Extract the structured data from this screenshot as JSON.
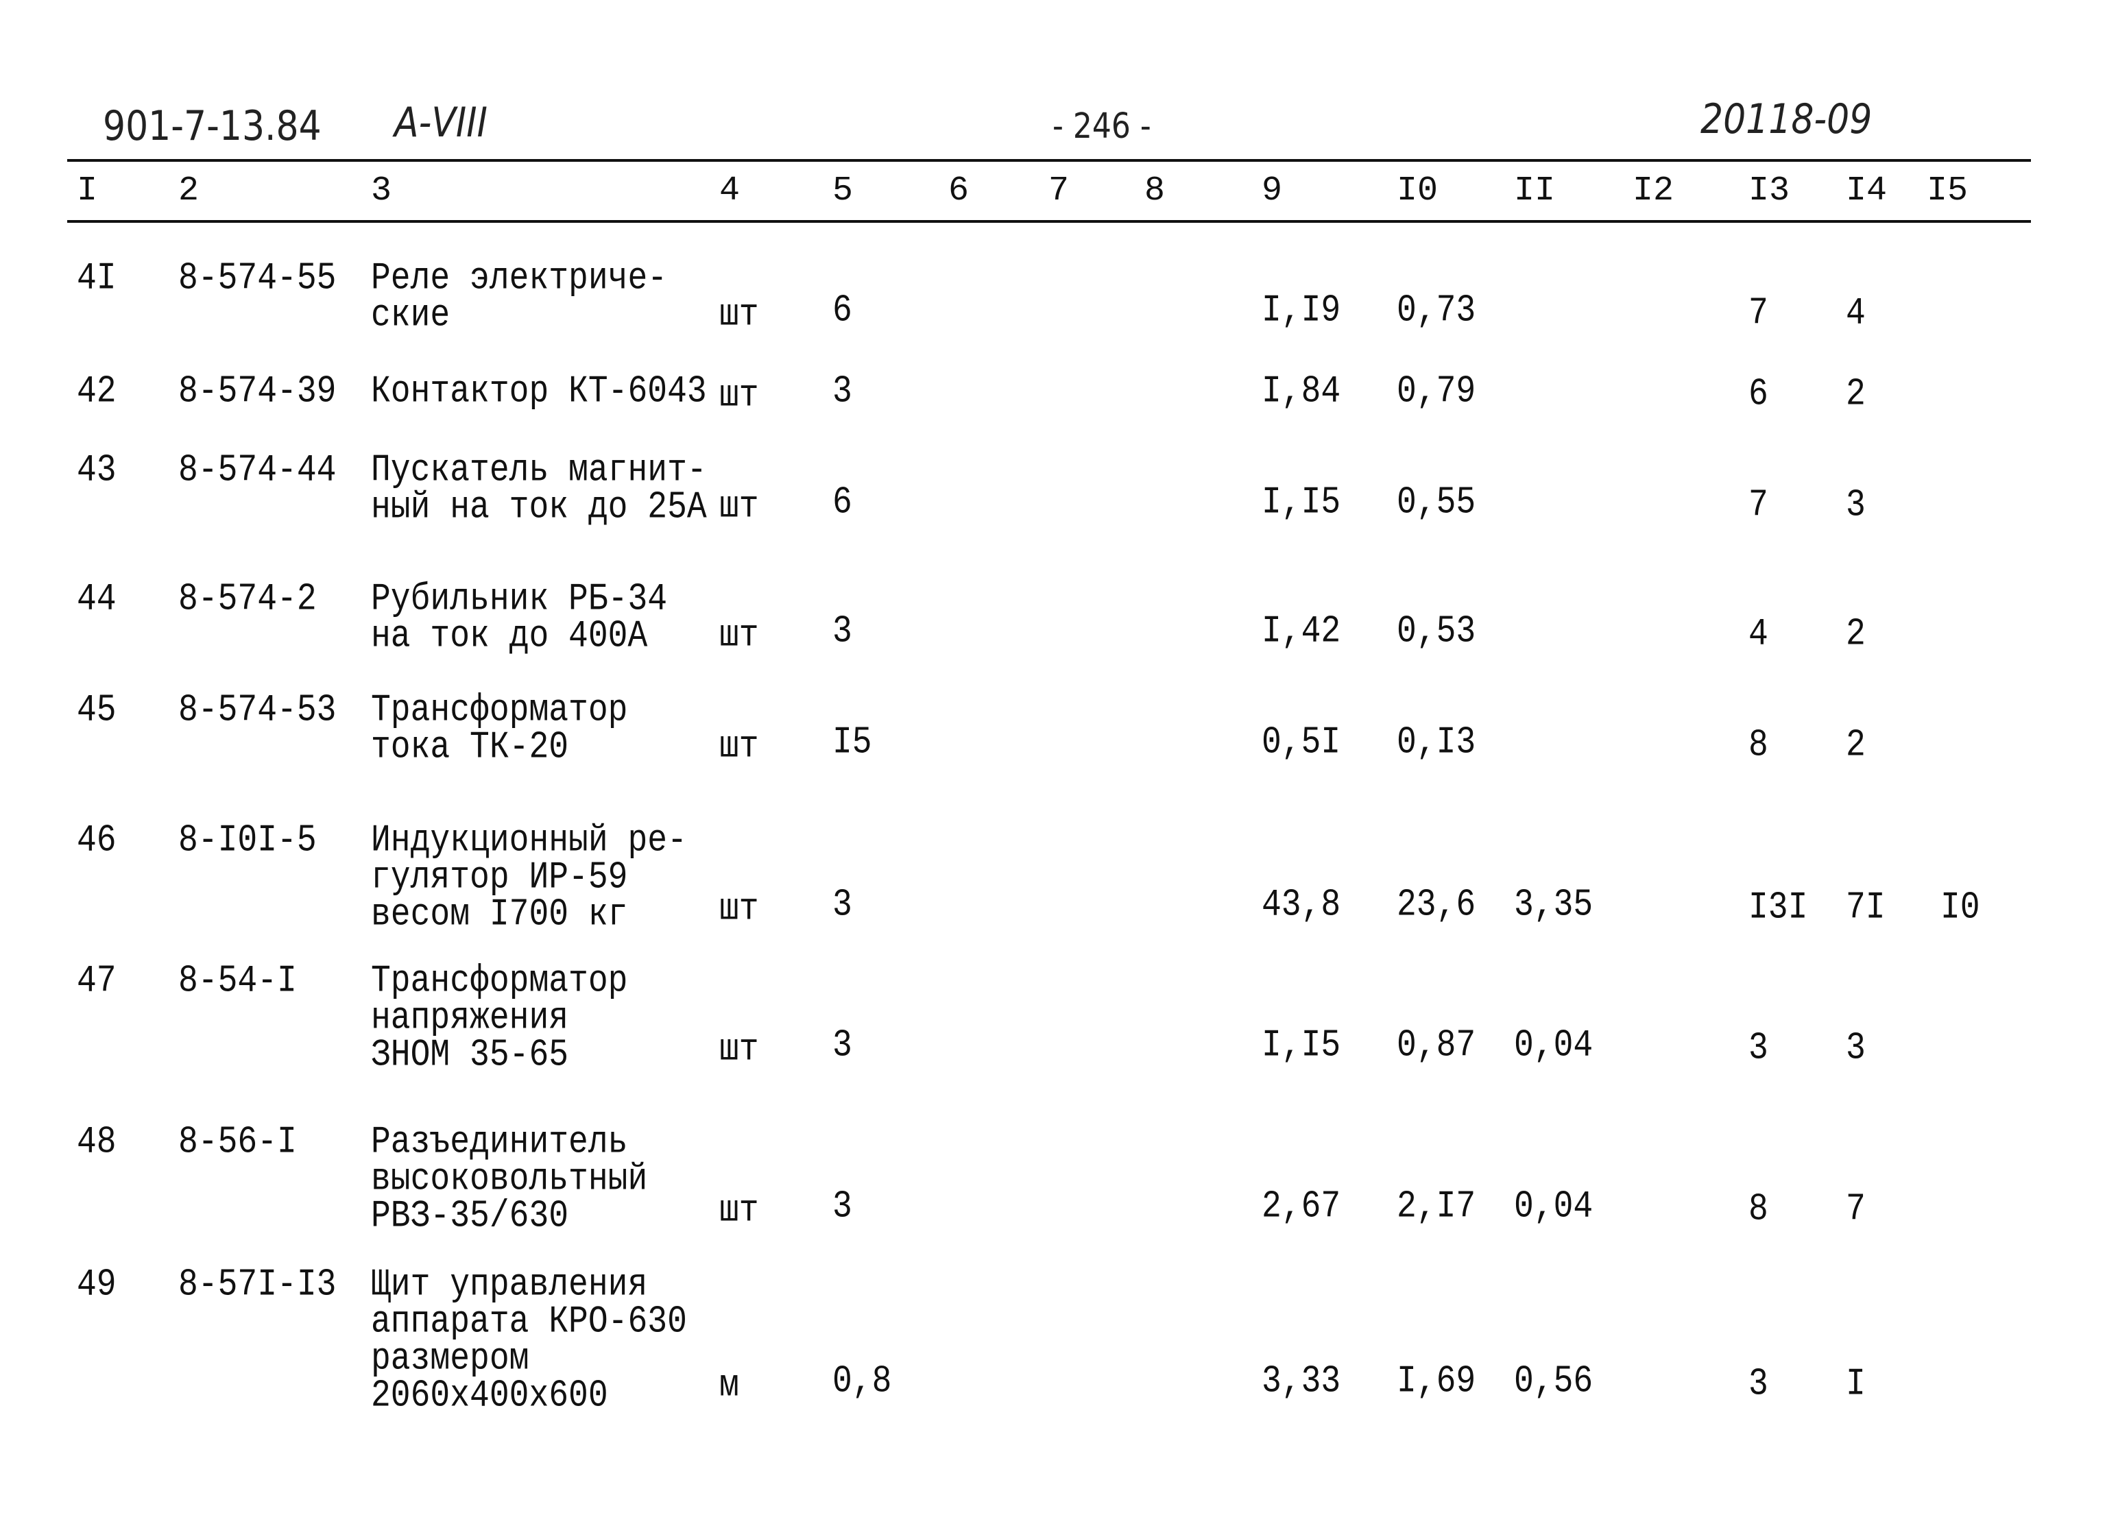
{
  "header": {
    "doc_code": "901-7-13.84",
    "album": "А-VIII",
    "page": "- 246 -",
    "archive_no": "20118-09"
  },
  "columns": [
    "I",
    "2",
    "3",
    "4",
    "5",
    "6",
    "7",
    "8",
    "9",
    "I0",
    "II",
    "I2",
    "I3",
    "I4",
    "I5"
  ],
  "rows": [
    {
      "num": "4I",
      "code": "8-574-55",
      "desc": [
        "Реле электриче-",
        "ские"
      ],
      "unit": "шт",
      "c5": "6",
      "c9": "I,I9",
      "c10": "0,73",
      "c11": "",
      "c13": "7",
      "c14": "4",
      "c15": ""
    },
    {
      "num": "42",
      "code": "8-574-39",
      "desc": [
        "Контактор КТ-6043"
      ],
      "unit": "шт",
      "c5": "3",
      "c9": "I,84",
      "c10": "0,79",
      "c11": "",
      "c13": "6",
      "c14": "2",
      "c15": ""
    },
    {
      "num": "43",
      "code": "8-574-44",
      "desc": [
        "Пускатель магнит-",
        "ный на ток до 25А"
      ],
      "unit": "шт",
      "c5": "6",
      "c9": "I,I5",
      "c10": "0,55",
      "c11": "",
      "c13": "7",
      "c14": "3",
      "c15": ""
    },
    {
      "num": "44",
      "code": "8-574-2",
      "desc": [
        "Рубильник РБ-34",
        "на ток до 400А"
      ],
      "unit": "шт",
      "c5": "3",
      "c9": "I,42",
      "c10": "0,53",
      "c11": "",
      "c13": "4",
      "c14": "2",
      "c15": ""
    },
    {
      "num": "45",
      "code": "8-574-53",
      "desc": [
        "Трансформатор",
        "тока ТК-20"
      ],
      "unit": "шт",
      "c5": "I5",
      "c9": "0,5I",
      "c10": "0,I3",
      "c11": "",
      "c13": "8",
      "c14": "2",
      "c15": ""
    },
    {
      "num": "46",
      "code": "8-I0I-5",
      "desc": [
        "Индукционный ре-",
        "гулятор ИР-59",
        "весом I700 кг"
      ],
      "unit": "шт",
      "c5": "3",
      "c9": "43,8",
      "c10": "23,6",
      "c11": "3,35",
      "c13": "I3I",
      "c14": "7I",
      "c15": "I0"
    },
    {
      "num": "47",
      "code": "8-54-I",
      "desc": [
        "Трансформатор",
        "напряжения",
        "ЗНОМ 35-65"
      ],
      "unit": "шт",
      "c5": "3",
      "c9": "I,I5",
      "c10": "0,87",
      "c11": "0,04",
      "c13": "3",
      "c14": "3",
      "c15": ""
    },
    {
      "num": "48",
      "code": "8-56-I",
      "desc": [
        "Разъединитель",
        "высоковольтный",
        "РВЗ-35/630"
      ],
      "unit": "шт",
      "c5": "3",
      "c9": "2,67",
      "c10": "2,I7",
      "c11": "0,04",
      "c13": "8",
      "c14": "7",
      "c15": ""
    },
    {
      "num": "49",
      "code": "8-57I-I3",
      "desc": [
        "Щит управления",
        "аппарата КРО-630",
        "размером",
        "2060х400х600"
      ],
      "unit": "м",
      "c5": "0,8",
      "c9": "3,33",
      "c10": "I,69",
      "c11": "0,56",
      "c13": "3",
      "c14": "I",
      "c15": ""
    }
  ]
}
